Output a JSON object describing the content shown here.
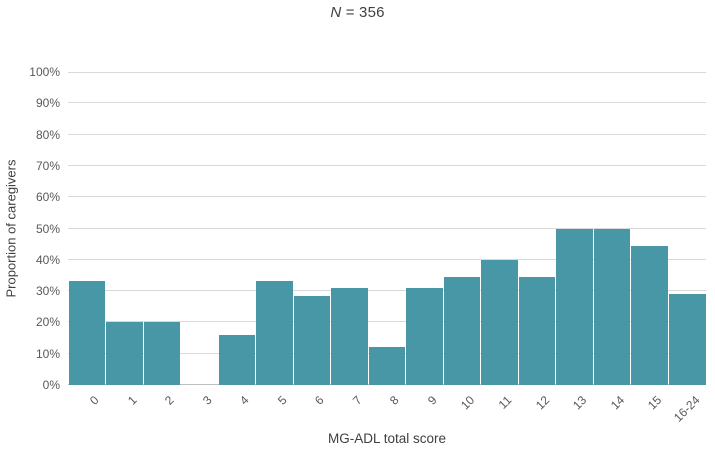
{
  "chart_data": {
    "type": "bar",
    "title": "N = 356",
    "title_italic": "N",
    "title_rest": " = 356",
    "xlabel": "MG-ADL total score",
    "ylabel": "Proportion of caregivers",
    "categories": [
      "0",
      "1",
      "2",
      "3",
      "4",
      "5",
      "6",
      "7",
      "8",
      "9",
      "10",
      "11",
      "12",
      "13",
      "14",
      "15",
      "16-24"
    ],
    "values": [
      33.3,
      20,
      20,
      0,
      16,
      33.3,
      28.5,
      31,
      12,
      31,
      34.6,
      40,
      34.6,
      50,
      50,
      44.5,
      29
    ],
    "ylim": [
      0,
      100
    ],
    "ytick_step": 10,
    "ytick_suffix": "%",
    "grid": true,
    "legend_position": "none",
    "bar_color": "#4797a6",
    "gridline_color": "#d9d9d9",
    "axis_line_color": "#bfbfbf",
    "tick_label_color": "#595959",
    "axis_title_color": "#404040"
  }
}
